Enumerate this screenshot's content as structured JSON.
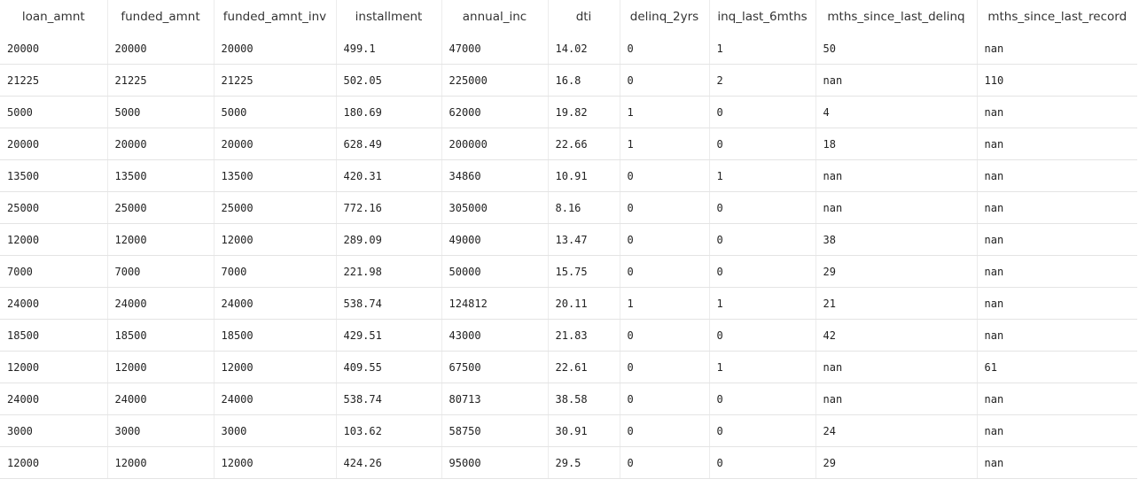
{
  "table": {
    "columns": [
      "loan_amnt",
      "funded_amnt",
      "funded_amnt_inv",
      "installment",
      "annual_inc",
      "dti",
      "delinq_2yrs",
      "inq_last_6mths",
      "mths_since_last_delinq",
      "mths_since_last_record"
    ],
    "rows": [
      [
        "20000",
        "20000",
        "20000",
        "499.1",
        "47000",
        "14.02",
        "0",
        "1",
        "50",
        "nan"
      ],
      [
        "21225",
        "21225",
        "21225",
        "502.05",
        "225000",
        "16.8",
        "0",
        "2",
        "nan",
        "110"
      ],
      [
        "5000",
        "5000",
        "5000",
        "180.69",
        "62000",
        "19.82",
        "1",
        "0",
        "4",
        "nan"
      ],
      [
        "20000",
        "20000",
        "20000",
        "628.49",
        "200000",
        "22.66",
        "1",
        "0",
        "18",
        "nan"
      ],
      [
        "13500",
        "13500",
        "13500",
        "420.31",
        "34860",
        "10.91",
        "0",
        "1",
        "nan",
        "nan"
      ],
      [
        "25000",
        "25000",
        "25000",
        "772.16",
        "305000",
        "8.16",
        "0",
        "0",
        "nan",
        "nan"
      ],
      [
        "12000",
        "12000",
        "12000",
        "289.09",
        "49000",
        "13.47",
        "0",
        "0",
        "38",
        "nan"
      ],
      [
        "7000",
        "7000",
        "7000",
        "221.98",
        "50000",
        "15.75",
        "0",
        "0",
        "29",
        "nan"
      ],
      [
        "24000",
        "24000",
        "24000",
        "538.74",
        "124812",
        "20.11",
        "1",
        "1",
        "21",
        "nan"
      ],
      [
        "18500",
        "18500",
        "18500",
        "429.51",
        "43000",
        "21.83",
        "0",
        "0",
        "42",
        "nan"
      ],
      [
        "12000",
        "12000",
        "12000",
        "409.55",
        "67500",
        "22.61",
        "0",
        "1",
        "nan",
        "61"
      ],
      [
        "24000",
        "24000",
        "24000",
        "538.74",
        "80713",
        "38.58",
        "0",
        "0",
        "nan",
        "nan"
      ],
      [
        "3000",
        "3000",
        "3000",
        "103.62",
        "58750",
        "30.91",
        "0",
        "0",
        "24",
        "nan"
      ],
      [
        "12000",
        "12000",
        "12000",
        "424.26",
        "95000",
        "29.5",
        "0",
        "0",
        "29",
        "nan"
      ]
    ]
  }
}
